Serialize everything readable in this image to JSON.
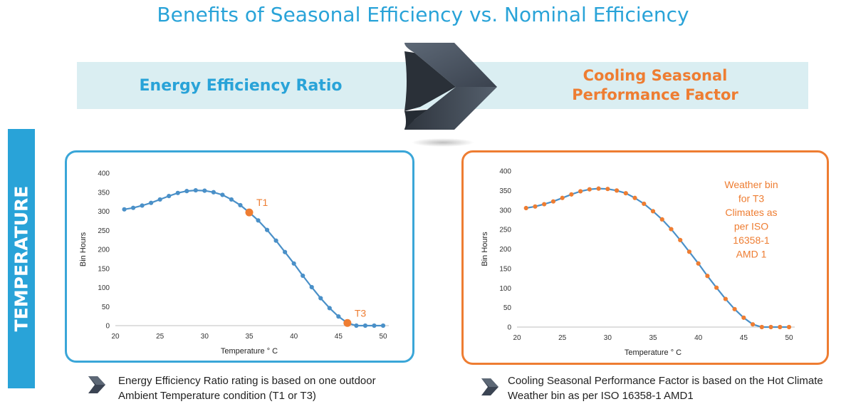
{
  "title": "Benefits of Seasonal Efficiency vs. Nominal Efficiency",
  "band": {
    "left_label": "Energy Efficiency Ratio",
    "right_label": "Cooling Seasonal\nPerformance Factor"
  },
  "side_label": "TEMPERATURE",
  "colors": {
    "blue": "#29a3d8",
    "orange": "#ee7d32",
    "line": "#4a90c8",
    "dark": "#3b4453"
  },
  "icons": {
    "chevron": "chevron-right-icon",
    "bullet": "chevron-bullet-icon"
  },
  "chart_data": [
    {
      "type": "line",
      "title": "",
      "xlabel": "Temperature ° C",
      "ylabel": "Bin Hours",
      "xlim": [
        20,
        50
      ],
      "ylim": [
        0,
        400
      ],
      "xticks": [
        20,
        25,
        30,
        35,
        40,
        45,
        50
      ],
      "yticks": [
        0,
        50,
        100,
        150,
        200,
        250,
        300,
        350,
        400
      ],
      "x": [
        21,
        22,
        23,
        24,
        25,
        26,
        27,
        28,
        29,
        30,
        31,
        32,
        33,
        34,
        35,
        36,
        37,
        38,
        39,
        40,
        41,
        42,
        43,
        44,
        45,
        46,
        47,
        48,
        49,
        50
      ],
      "values": [
        305,
        309,
        315,
        322,
        331,
        340,
        348,
        353,
        355,
        354,
        350,
        343,
        331,
        316,
        297,
        276,
        251,
        223,
        193,
        163,
        131,
        101,
        72,
        46,
        24,
        7,
        0,
        0,
        0,
        0
      ],
      "marker_color": "#4a90c8",
      "highlights": [
        {
          "label": "T1",
          "x": 35,
          "y": 297
        },
        {
          "label": "T3",
          "x": 46,
          "y": 7
        }
      ],
      "annotation": ""
    },
    {
      "type": "line",
      "title": "",
      "xlabel": "Temperature ° C",
      "ylabel": "Bin Hours",
      "xlim": [
        20,
        50
      ],
      "ylim": [
        0,
        400
      ],
      "xticks": [
        20,
        25,
        30,
        35,
        40,
        45,
        50
      ],
      "yticks": [
        0,
        50,
        100,
        150,
        200,
        250,
        300,
        350,
        400
      ],
      "x": [
        21,
        22,
        23,
        24,
        25,
        26,
        27,
        28,
        29,
        30,
        31,
        32,
        33,
        34,
        35,
        36,
        37,
        38,
        39,
        40,
        41,
        42,
        43,
        44,
        45,
        46,
        47,
        48,
        49,
        50
      ],
      "values": [
        305,
        309,
        315,
        322,
        331,
        340,
        348,
        353,
        355,
        354,
        350,
        343,
        331,
        316,
        297,
        276,
        251,
        223,
        193,
        163,
        131,
        101,
        72,
        46,
        24,
        7,
        0,
        0,
        0,
        0
      ],
      "marker_color": "#ee7d32",
      "highlights": [],
      "annotation": "Weather bin\nfor T3\nClimates as\nper ISO\n16358-1\nAMD 1"
    }
  ],
  "notes": {
    "left": "Energy Efficiency Ratio rating is based on one  outdoor\nAmbient Temperature condition (T1 or T3)",
    "right": "Cooling Seasonal Performance Factor is based on the Hot Climate\nWeather bin as per ISO 16358-1 AMD1"
  }
}
